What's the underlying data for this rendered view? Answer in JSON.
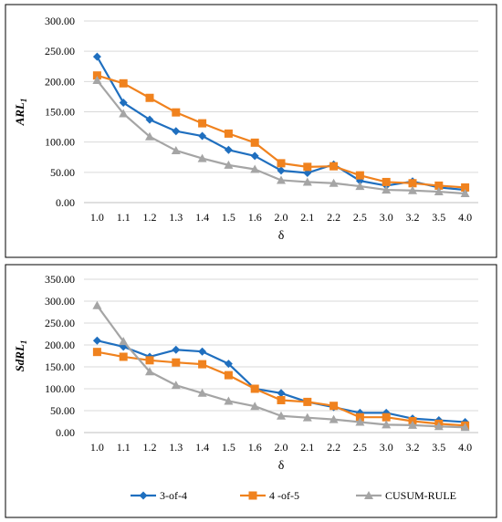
{
  "chart_data": [
    {
      "type": "line",
      "ylabel_main": "ARL",
      "ylabel_sub": "1",
      "xlabel": "δ",
      "categories": [
        "1.0",
        "1.1",
        "1.2",
        "1.3",
        "1.4",
        "1.5",
        "1.6",
        "2.0",
        "2.1",
        "2.2",
        "2.5",
        "3.0",
        "3.2",
        "3.5",
        "4.0"
      ],
      "ylim": [
        0,
        300
      ],
      "yticks": [
        "0.00",
        "50.00",
        "100.00",
        "150.00",
        "200.00",
        "250.00",
        "300.00"
      ],
      "grid": true,
      "series": [
        {
          "name": "3-of-4",
          "color": "#1f6fbf",
          "marker": "diamond",
          "values": [
            241,
            165,
            137,
            118,
            110,
            87,
            77,
            53,
            49,
            63,
            36,
            28,
            35,
            25,
            21
          ]
        },
        {
          "name": "4 -of-5",
          "color": "#f0821e",
          "marker": "square",
          "values": [
            210,
            197,
            173,
            149,
            131,
            114,
            99,
            65,
            59,
            60,
            45,
            34,
            32,
            28,
            25
          ]
        },
        {
          "name": "CUSUM-RULE",
          "color": "#a5a5a5",
          "marker": "triangle",
          "values": [
            202,
            147,
            109,
            86,
            73,
            62,
            55,
            37,
            34,
            32,
            27,
            21,
            20,
            18,
            15
          ]
        }
      ]
    },
    {
      "type": "line",
      "ylabel_main": "SdRL",
      "ylabel_sub": "1",
      "xlabel": "δ",
      "categories": [
        "1.0",
        "1.1",
        "1.2",
        "1.3",
        "1.4",
        "1.5",
        "1.6",
        "2.0",
        "2.1",
        "2.2",
        "2.5",
        "3.0",
        "3.2",
        "3.5",
        "4.0"
      ],
      "ylim": [
        0,
        350
      ],
      "yticks": [
        "0.00",
        "50.00",
        "100.00",
        "150.00",
        "200.00",
        "250.00",
        "300.00",
        "350.00"
      ],
      "grid": true,
      "series": [
        {
          "name": "3-of-4",
          "color": "#1f6fbf",
          "marker": "diamond",
          "values": [
            210,
            196,
            173,
            189,
            185,
            157,
            100,
            90,
            70,
            58,
            45,
            45,
            32,
            28,
            24
          ]
        },
        {
          "name": "4 -of-5",
          "color": "#f0821e",
          "marker": "square",
          "values": [
            184,
            173,
            165,
            160,
            156,
            131,
            100,
            74,
            70,
            61,
            35,
            35,
            26,
            20,
            16
          ]
        },
        {
          "name": "CUSUM-RULE",
          "color": "#a5a5a5",
          "marker": "triangle",
          "values": [
            290,
            208,
            139,
            108,
            90,
            72,
            60,
            38,
            34,
            30,
            24,
            18,
            17,
            14,
            12
          ]
        }
      ]
    }
  ],
  "legend": {
    "items": [
      {
        "label": "3-of-4",
        "color": "#1f6fbf",
        "marker": "diamond"
      },
      {
        "label": "4 -of-5",
        "color": "#f0821e",
        "marker": "square"
      },
      {
        "label": "CUSUM-RULE",
        "color": "#a5a5a5",
        "marker": "triangle"
      }
    ]
  }
}
